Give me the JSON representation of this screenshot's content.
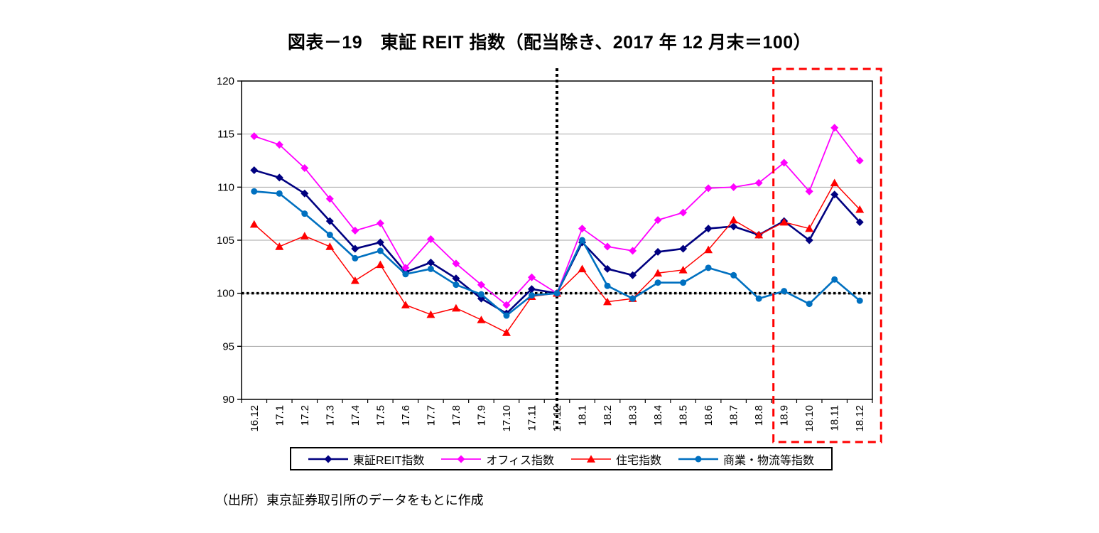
{
  "title": "図表－19　東証 REIT 指数（配当除き、2017 年 12 月末＝100）",
  "source_note": "（出所）東京証券取引所のデータをもとに作成",
  "chart_data": {
    "type": "line",
    "title": "図表－19　東証 REIT 指数（配当除き、2017 年 12 月末＝100）",
    "xlabel": "",
    "ylabel": "",
    "ylim": [
      90,
      120
    ],
    "ytick_step": 5,
    "grid": true,
    "gridline_color": "#a6a6a6",
    "baseline_value": 100,
    "baseline_style": "thick dotted black",
    "vline_category": "17.12",
    "vline_style": "thick dotted black",
    "highlight_box": {
      "from_category": "18.9",
      "to_category": "18.12",
      "color": "#ff0000",
      "style": "dashed"
    },
    "legend_position": "bottom",
    "categories": [
      "16.12",
      "17.1",
      "17.2",
      "17.3",
      "17.4",
      "17.5",
      "17.6",
      "17.7",
      "17.8",
      "17.9",
      "17.10",
      "17.11",
      "17.12",
      "18.1",
      "18.2",
      "18.3",
      "18.4",
      "18.5",
      "18.6",
      "18.7",
      "18.8",
      "18.9",
      "18.10",
      "18.11",
      "18.12"
    ],
    "series": [
      {
        "name": "東証REIT指数",
        "color": "#000080",
        "marker": "diamond",
        "line_width": 2.6,
        "values": [
          111.6,
          110.9,
          109.4,
          106.8,
          104.2,
          104.8,
          102.0,
          102.9,
          101.4,
          99.5,
          98.1,
          100.4,
          100.0,
          104.8,
          102.3,
          101.7,
          103.9,
          104.2,
          106.1,
          106.3,
          105.5,
          106.8,
          105.0,
          109.3,
          106.7
        ]
      },
      {
        "name": "オフィス指数",
        "color": "#ff00ff",
        "marker": "diamond",
        "line_width": 1.8,
        "values": [
          114.8,
          114.0,
          111.8,
          108.9,
          105.9,
          106.6,
          102.4,
          105.1,
          102.8,
          100.8,
          98.9,
          101.5,
          100.0,
          106.1,
          104.4,
          104.0,
          106.9,
          107.6,
          109.9,
          110.0,
          110.4,
          112.3,
          109.6,
          115.6,
          112.5
        ]
      },
      {
        "name": "住宅指数",
        "color": "#ff0000",
        "marker": "triangle",
        "line_width": 1.5,
        "values": [
          106.5,
          104.4,
          105.4,
          104.4,
          101.2,
          102.7,
          98.9,
          98.0,
          98.6,
          97.5,
          96.3,
          99.7,
          100.0,
          102.3,
          99.2,
          99.5,
          101.9,
          102.2,
          104.1,
          106.9,
          105.5,
          106.7,
          106.1,
          110.4,
          107.9
        ]
      },
      {
        "name": "商業・物流等指数",
        "color": "#0070c0",
        "marker": "circle",
        "line_width": 2.6,
        "values": [
          109.6,
          109.4,
          107.5,
          105.5,
          103.3,
          104.0,
          101.8,
          102.3,
          100.8,
          99.9,
          97.9,
          99.8,
          100.0,
          105.0,
          100.7,
          99.5,
          101.0,
          101.0,
          102.4,
          101.7,
          99.5,
          100.2,
          99.0,
          101.3,
          99.3
        ]
      }
    ]
  }
}
